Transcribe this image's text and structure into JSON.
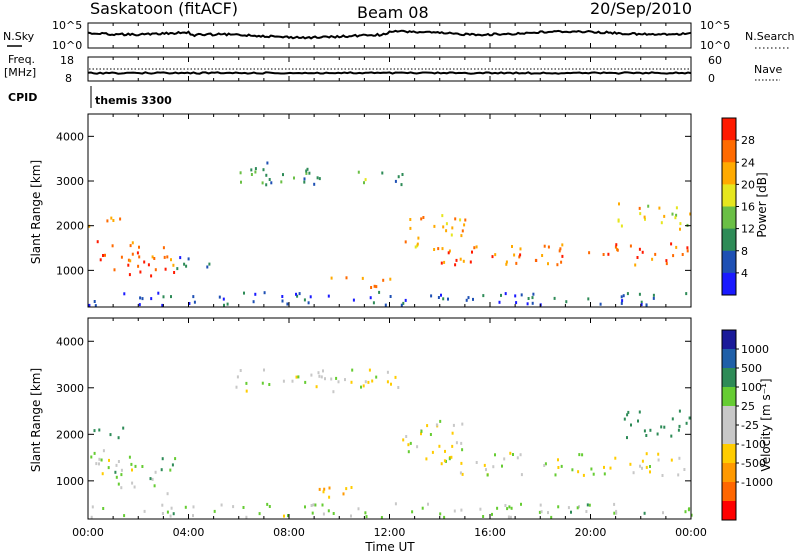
{
  "header": {
    "station": "Saskatoon (fitACF)",
    "beam": "Beam 08",
    "date": "20/Sep/2010"
  },
  "top_panels": {
    "nsky_label": "N.Sky",
    "nsearch_label": "N.Search",
    "count_tick_high": "10^5",
    "count_tick_low": "10^0",
    "freq_label": "Freq.",
    "freq_unit": "[MHz]",
    "freq_tick_high": "18",
    "freq_tick_low": "8",
    "nave_label": "Nave",
    "nave_tick_high": "60",
    "nave_tick_low": "0",
    "cpid_label": "CPID",
    "cpid_value": "themis 3300"
  },
  "colors": {
    "power_scale": [
      "#1a1aff",
      "#1e50b4",
      "#2e8b57",
      "#6abf45",
      "#e6e61e",
      "#ffaa00",
      "#ff6a00",
      "#ff1a00"
    ],
    "velocity_scale": [
      "#ff0000",
      "#ff6600",
      "#ff9900",
      "#ffcc00",
      "#c8c8c8",
      "#c8c8c8",
      "#66cc33",
      "#2e8b57",
      "#1f5fa8",
      "#1a1a99"
    ]
  },
  "chart_data": [
    {
      "type": "heatmap",
      "name": "power",
      "ylabel": "Slant Range [km]",
      "xlabel": "",
      "x_ticks": [
        "00:00",
        "04:00",
        "08:00",
        "12:00",
        "16:00",
        "20:00",
        "00:00"
      ],
      "x_range_hours": [
        0,
        24
      ],
      "y_ticks": [
        "1000",
        "2000",
        "3000",
        "4000"
      ],
      "ylim": [
        180,
        4500
      ],
      "colorbar_label": "Power [dB]",
      "colorbar_ticks": [
        "4",
        "8",
        "12",
        "16",
        "20",
        "24",
        "28"
      ],
      "colorbar_range": [
        0,
        32
      ],
      "echo_regions": [
        {
          "t": [
            0.0,
            2.0
          ],
          "range": [
            1100,
            1700
          ],
          "value": 26
        },
        {
          "t": [
            1.0,
            3.5
          ],
          "range": [
            800,
            1500
          ],
          "value": 28
        },
        {
          "t": [
            3.5,
            5.0
          ],
          "range": [
            900,
            1300
          ],
          "value": 8
        },
        {
          "t": [
            0.0,
            1.5
          ],
          "range": [
            1900,
            2200
          ],
          "value": 22
        },
        {
          "t": [
            5.5,
            10.0
          ],
          "range": [
            2900,
            3400
          ],
          "value": 10
        },
        {
          "t": [
            10.0,
            12.5
          ],
          "range": [
            2900,
            3200
          ],
          "value": 12
        },
        {
          "t": [
            12.5,
            15.0
          ],
          "range": [
            1400,
            2300
          ],
          "value": 22
        },
        {
          "t": [
            14.0,
            24.0
          ],
          "range": [
            1100,
            1600
          ],
          "value": 26
        },
        {
          "t": [
            21.0,
            24.0
          ],
          "range": [
            1900,
            2500
          ],
          "value": 20
        },
        {
          "t": [
            9.0,
            12.0
          ],
          "range": [
            600,
            850
          ],
          "value": 24
        },
        {
          "t": [
            0.0,
            24.0
          ],
          "range": [
            200,
            500
          ],
          "value": 6
        }
      ]
    },
    {
      "type": "heatmap",
      "name": "velocity",
      "ylabel": "Slant Range [km]",
      "xlabel": "Time UT",
      "x_ticks": [
        "00:00",
        "04:00",
        "08:00",
        "12:00",
        "16:00",
        "20:00",
        "00:00"
      ],
      "x_range_hours": [
        0,
        24
      ],
      "y_ticks": [
        "1000",
        "2000",
        "3000",
        "4000"
      ],
      "ylim": [
        180,
        4500
      ],
      "colorbar_label": "Velocity [m s⁻¹]",
      "colorbar_ticks": [
        "1000",
        "500",
        "100",
        "25",
        "-25",
        "-100",
        "-500",
        "-1000"
      ],
      "echo_regions": [
        {
          "t": [
            0.0,
            2.0
          ],
          "range": [
            1100,
            1700
          ],
          "value": 0
        },
        {
          "t": [
            1.0,
            3.5
          ],
          "range": [
            700,
            1500
          ],
          "value": 60
        },
        {
          "t": [
            0.0,
            1.5
          ],
          "range": [
            1900,
            2200
          ],
          "value": 300
        },
        {
          "t": [
            5.5,
            12.5
          ],
          "range": [
            2900,
            3400
          ],
          "value": 0
        },
        {
          "t": [
            12.5,
            15.0
          ],
          "range": [
            1400,
            2300
          ],
          "value": 0
        },
        {
          "t": [
            14.0,
            24.0
          ],
          "range": [
            1100,
            1600
          ],
          "value": 0
        },
        {
          "t": [
            21.0,
            24.0
          ],
          "range": [
            1900,
            2500
          ],
          "value": 200
        },
        {
          "t": [
            9.0,
            12.0
          ],
          "range": [
            600,
            850
          ],
          "value": -60
        },
        {
          "t": [
            0.0,
            24.0
          ],
          "range": [
            200,
            500
          ],
          "value": 40
        }
      ]
    }
  ]
}
